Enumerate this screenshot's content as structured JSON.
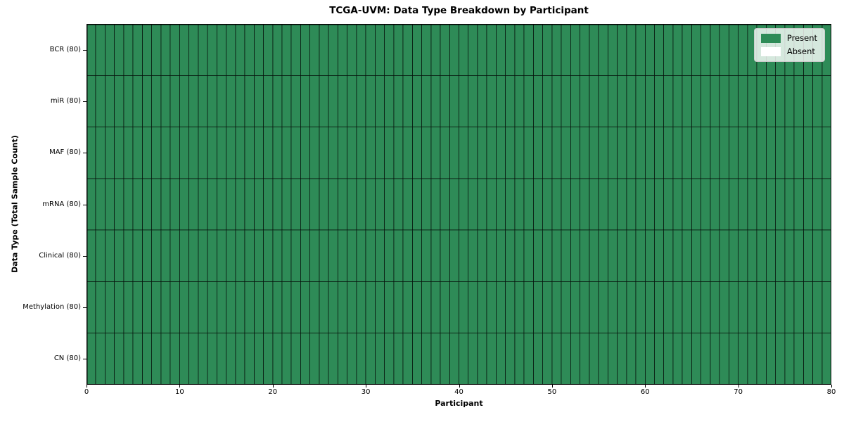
{
  "chart_data": {
    "type": "heatmap",
    "title": "TCGA-UVM: Data Type Breakdown by Participant",
    "xlabel": "Participant",
    "ylabel": "Data Type (Total Sample Count)",
    "x_range": [
      0,
      80
    ],
    "x_ticks": [
      0,
      10,
      20,
      30,
      40,
      50,
      60,
      70,
      80
    ],
    "n_participants": 80,
    "rows": [
      {
        "label": "BCR (80)",
        "data_type": "BCR",
        "total_sample_count": 80,
        "present_count": 80,
        "absent_count": 0
      },
      {
        "label": "miR (80)",
        "data_type": "miR",
        "total_sample_count": 80,
        "present_count": 80,
        "absent_count": 0
      },
      {
        "label": "MAF (80)",
        "data_type": "MAF",
        "total_sample_count": 80,
        "present_count": 80,
        "absent_count": 0
      },
      {
        "label": "mRNA (80)",
        "data_type": "mRNA",
        "total_sample_count": 80,
        "present_count": 80,
        "absent_count": 0
      },
      {
        "label": "Clinical (80)",
        "data_type": "Clinical",
        "total_sample_count": 80,
        "present_count": 80,
        "absent_count": 0
      },
      {
        "label": "Methylation (80)",
        "data_type": "Methylation",
        "total_sample_count": 80,
        "present_count": 80,
        "absent_count": 0
      },
      {
        "label": "CN (80)",
        "data_type": "CN",
        "total_sample_count": 80,
        "present_count": 80,
        "absent_count": 0
      }
    ],
    "legend": {
      "position": "upper-right",
      "items": [
        {
          "label": "Present",
          "color": "#2e8b57"
        },
        {
          "label": "Absent",
          "color": "#ffffff"
        }
      ]
    },
    "colors": {
      "present": "#2e8b57",
      "absent": "#ffffff",
      "cell_edge": "rgba(0,0,0,0.6)",
      "spine": "#000000",
      "background": "#ffffff"
    },
    "grid": true
  }
}
